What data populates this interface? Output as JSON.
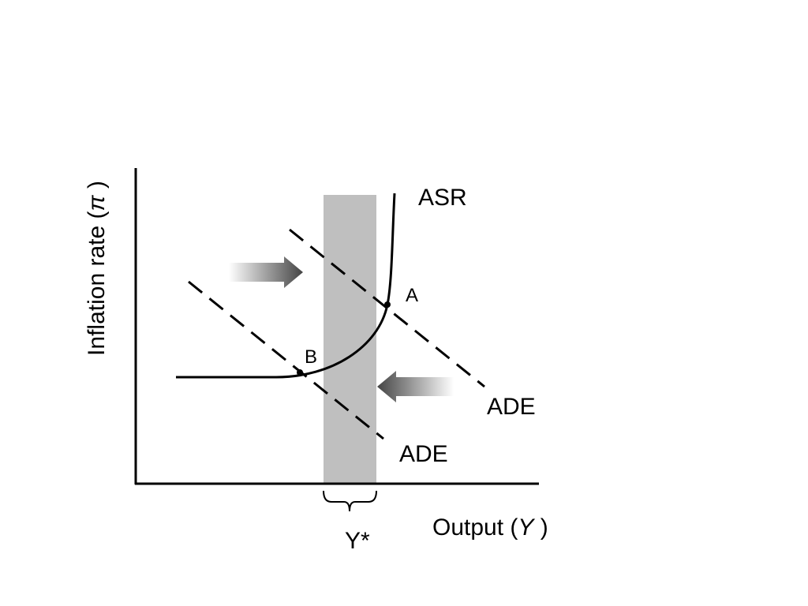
{
  "axes": {
    "y_label": {
      "before": "Inflation rate (",
      "symbol": "π",
      "after": " )"
    },
    "x_label": {
      "before": "Output (",
      "symbol": "Y",
      "after": " )"
    }
  },
  "curves": {
    "asr": "ASR",
    "ade_upper": "ADE",
    "ade_lower": "ADE"
  },
  "points": {
    "a": "A",
    "b": "B"
  },
  "band": {
    "label": "Y*"
  }
}
